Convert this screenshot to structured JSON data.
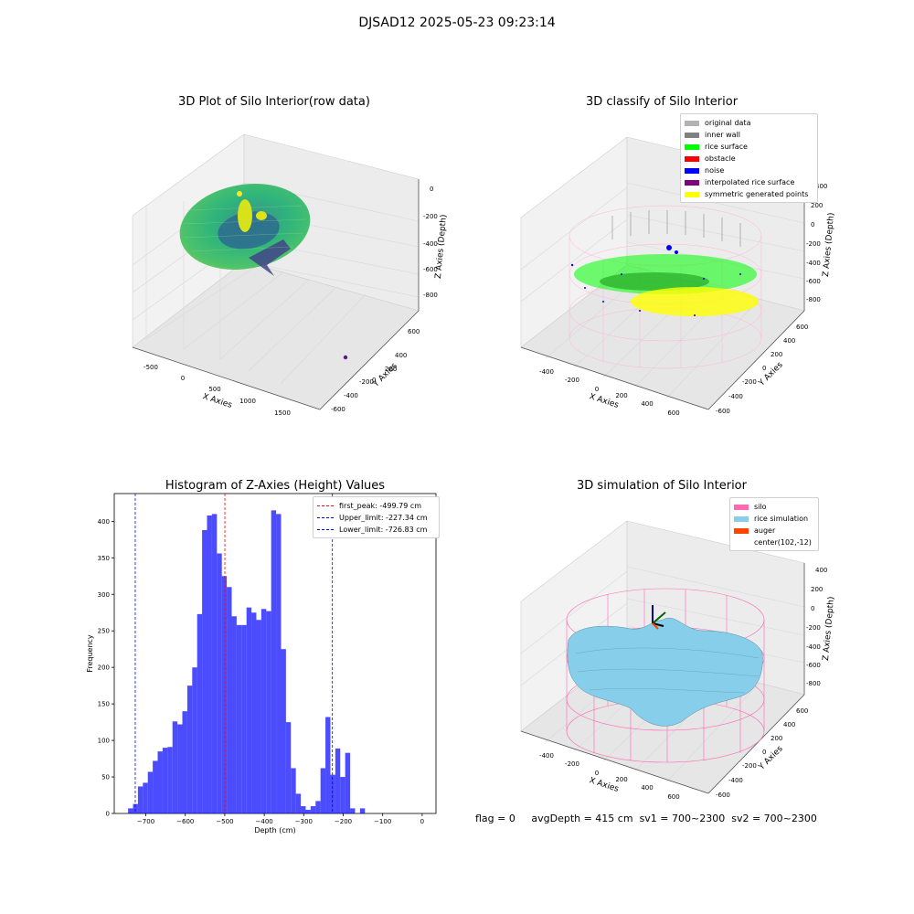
{
  "figure": {
    "suptitle": "DJSAD12 2025-05-23 09:23:14"
  },
  "panels": {
    "raw": {
      "title": "3D Plot of Silo Interior(row data)",
      "xlabel": "X Axies",
      "ylabel": "Y Axies",
      "zlabel": "Z Axies (Depth)",
      "xticks": [
        "-500",
        "0",
        "500",
        "1000",
        "1500"
      ],
      "yticks": [
        "600",
        "400",
        "200",
        "0",
        "-200",
        "-400",
        "-600"
      ],
      "zticks": [
        "0",
        "-200",
        "-400",
        "-600",
        "-800"
      ]
    },
    "classify": {
      "title": "3D classify of Silo Interior",
      "xlabel": "X Axies",
      "ylabel": "Y Axies",
      "zlabel": "Z Axies (Depth)",
      "xticks": [
        "-400",
        "-200",
        "0",
        "200",
        "400",
        "600"
      ],
      "yticks": [
        "600",
        "400",
        "200",
        "0",
        "-200",
        "-400",
        "-600"
      ],
      "zticks": [
        "400",
        "200",
        "0",
        "-200",
        "-400",
        "-600",
        "-800"
      ],
      "legend": [
        {
          "label": "original data",
          "color": "#b3b3b3"
        },
        {
          "label": "inner wall",
          "color": "#808080"
        },
        {
          "label": "rice surface",
          "color": "#00ff00"
        },
        {
          "label": "obstacle",
          "color": "#ff0000"
        },
        {
          "label": "noise",
          "color": "#0000ff"
        },
        {
          "label": "interpolated rice surface",
          "color": "#800080"
        },
        {
          "label": "symmetric generated points",
          "color": "#ffff00"
        }
      ]
    },
    "simulation": {
      "title": "3D simulation of Silo Interior",
      "xlabel": "X Axies",
      "ylabel": "Y Axies",
      "zlabel": "Z Axies (Depth)",
      "xticks": [
        "-400",
        "-200",
        "0",
        "200",
        "400",
        "600"
      ],
      "yticks": [
        "600",
        "400",
        "200",
        "0",
        "-200",
        "-400",
        "-600"
      ],
      "zticks": [
        "400",
        "200",
        "0",
        "-200",
        "-400",
        "-600",
        "-800"
      ],
      "legend": [
        {
          "label": "silo",
          "color": "#ff69b4"
        },
        {
          "label": "rice simulation",
          "color": "#87ceeb"
        },
        {
          "label": "auger",
          "color": "#ff4500"
        },
        {
          "label": "center(102,-12)",
          "color": ""
        }
      ]
    }
  },
  "footer": {
    "flag": "flag = 0",
    "avg_depth": "avgDepth = 415 cm",
    "sv1": "sv1 = 700~2300",
    "sv2": "sv2 = 700~2300"
  },
  "chart_data": [
    {
      "type": "bar",
      "title": "Histogram of Z-Axies (Height) Values",
      "xlabel": "Depth (cm)",
      "ylabel": "Frequency",
      "xlim": [
        -780,
        35
      ],
      "ylim": [
        0,
        438
      ],
      "bin_start": -745,
      "bin_width": 12.5,
      "x_ticks": [
        -700,
        -600,
        -500,
        -400,
        -300,
        -200,
        -100,
        0
      ],
      "y_ticks": [
        0,
        50,
        100,
        150,
        200,
        250,
        300,
        350,
        400
      ],
      "bar_color": "#0000ff",
      "values": [
        7,
        13,
        37,
        42,
        57,
        72,
        85,
        90,
        91,
        126,
        122,
        140,
        175,
        200,
        273,
        388,
        408,
        410,
        356,
        325,
        310,
        270,
        258,
        258,
        282,
        275,
        265,
        280,
        277,
        415,
        410,
        225,
        125,
        62,
        27,
        10,
        5,
        10,
        17,
        62,
        132,
        53,
        89,
        50,
        83,
        7,
        0,
        7
      ],
      "reference_lines": [
        {
          "name": "first_peak: -499.79 cm",
          "x": -499.79,
          "color": "#ff0000"
        },
        {
          "name": "Upper_limit: -227.34 cm",
          "x": -227.34,
          "color": "#0000ff"
        },
        {
          "name": "Lower_limit: -726.83 cm",
          "x": -726.83,
          "color": "#0000ff"
        }
      ],
      "legend_position": "top-right"
    }
  ]
}
